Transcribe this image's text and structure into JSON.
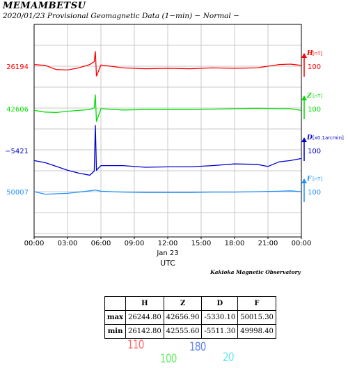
{
  "header": {
    "station": "MEMAMBETSU",
    "subtitle": "2020/01/23  Provisional Geomagnetic Data (1−min)  − Normal −"
  },
  "chart_data": {
    "type": "line",
    "x_tick_labels": [
      "00:00",
      "03:00",
      "06:00",
      "09:00",
      "12:00",
      "15:00",
      "18:00",
      "21:00",
      "00:00"
    ],
    "date_label": "Jan 23",
    "xlabel": "UTC",
    "credit": "Kakioka Magnetic Observatory",
    "x_range_hours": [
      0,
      24
    ],
    "grid": true,
    "series": [
      {
        "name": "H",
        "unit": "[nT]",
        "base_label": "26194",
        "scale_label": "100",
        "color": "#ff0000",
        "x": [
          0,
          1,
          2,
          3,
          4,
          5,
          5.4,
          5.5,
          5.6,
          6,
          8,
          10,
          12,
          14,
          16,
          18,
          20,
          22,
          23,
          24
        ],
        "y": [
          26198,
          26196,
          26186,
          26185,
          26190,
          26198,
          26205,
          26230,
          26170,
          26197,
          26190,
          26188,
          26189,
          26188,
          26190,
          26189,
          26190,
          26198,
          26199,
          26196
        ]
      },
      {
        "name": "Z",
        "unit": "[nT]",
        "base_label": "42606",
        "scale_label": "100",
        "color": "#00dd00",
        "x": [
          0,
          1,
          2,
          3,
          4,
          5,
          5.4,
          5.5,
          5.6,
          6,
          8,
          10,
          12,
          14,
          16,
          18,
          20,
          22,
          23,
          24
        ],
        "y": [
          42602,
          42598,
          42597,
          42600,
          42602,
          42604,
          42608,
          42640,
          42575,
          42606,
          42603,
          42604,
          42604,
          42604,
          42605,
          42606,
          42607,
          42606,
          42606,
          42602
        ]
      },
      {
        "name": "D",
        "unit": "[x0.1arcmin]",
        "base_label": "−5421",
        "scale_label": "100",
        "color": "#0000cc",
        "x": [
          0,
          1,
          2,
          3,
          4,
          5,
          5.4,
          5.5,
          5.6,
          6,
          8,
          10,
          12,
          14,
          16,
          18,
          20,
          21,
          22,
          23,
          24
        ],
        "y": [
          -5445,
          -5450,
          -5459,
          -5468,
          -5475,
          -5480,
          -5470,
          -5360,
          -5468,
          -5457,
          -5457,
          -5461,
          -5460,
          -5460,
          -5457,
          -5453,
          -5454,
          -5459,
          -5448,
          -5445,
          -5440
        ]
      },
      {
        "name": "F",
        "unit": "[nT]",
        "base_label": "50007",
        "scale_label": "100",
        "color": "#1e90ff",
        "x": [
          0,
          1,
          2,
          3,
          4,
          5,
          5.5,
          6,
          8,
          10,
          12,
          14,
          16,
          18,
          20,
          22,
          23,
          24
        ],
        "y": [
          50007,
          50001,
          50002,
          50003,
          50006,
          50009,
          50011,
          50008,
          50006,
          50005,
          50005,
          50005,
          50006,
          50006,
          50007,
          50008,
          50009,
          50007
        ]
      }
    ]
  },
  "summary_table": {
    "columns": [
      "",
      "H",
      "Z",
      "D",
      "F"
    ],
    "rows": [
      {
        "label": "max",
        "values": [
          "26244.80",
          "42656.90",
          "-5330.10",
          "50015.30"
        ]
      },
      {
        "label": "min",
        "values": [
          "26142.80",
          "42555.60",
          "-5511.30",
          "49998.40"
        ]
      }
    ]
  },
  "scale_marks": [
    {
      "text": "110",
      "color": "#ff6b6b"
    },
    {
      "text": "100",
      "color": "#66ee66"
    },
    {
      "text": "180",
      "color": "#6688ee"
    },
    {
      "text": "20",
      "color": "#66e8f0"
    }
  ]
}
